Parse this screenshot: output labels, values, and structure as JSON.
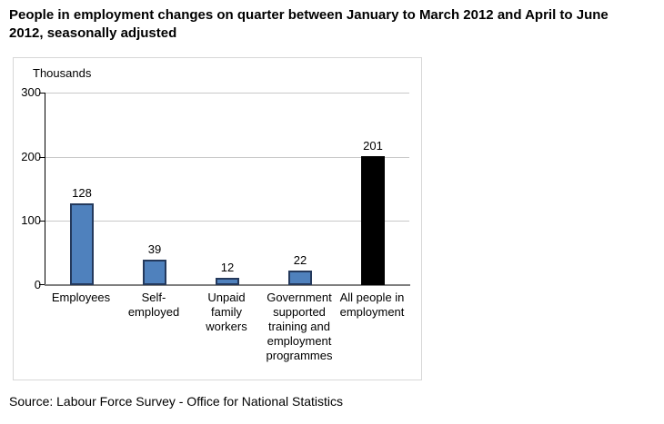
{
  "title": {
    "lines": [
      "People in employment changes on quarter between January to March 2012 and April to June",
      "2012, seasonally adjusted"
    ]
  },
  "source": "Source: Labour Force Survey - Office for National Statistics",
  "chart_data": {
    "type": "bar",
    "title": "People in employment changes on quarter between January to March 2012 and April to June 2012, seasonally adjusted",
    "unit_label": "Thousands",
    "categories": [
      "Employees",
      "Self-employed",
      "Unpaid family workers",
      "Government supported training and employment programmes",
      "All people in employment"
    ],
    "category_label_lines": [
      [
        "Employees"
      ],
      [
        "Self-",
        "employed"
      ],
      [
        "Unpaid",
        "family",
        "workers"
      ],
      [
        "Government",
        "supported",
        "training and",
        "employment",
        "programmes"
      ],
      [
        "All people in",
        "employment"
      ]
    ],
    "values": [
      128,
      39,
      12,
      22,
      201
    ],
    "data_labels": [
      "128",
      "39",
      "12",
      "22",
      "201"
    ],
    "bar_colors": [
      "#4f81bd",
      "#4f81bd",
      "#4f81bd",
      "#4f81bd",
      "#000000"
    ],
    "bar_border_colors": [
      "#24395c",
      "#24395c",
      "#24395c",
      "#24395c",
      "#000000"
    ],
    "xlabel": "",
    "ylabel": "Thousands",
    "ylim": [
      0,
      300
    ],
    "yticks": [
      0,
      100,
      200,
      300
    ],
    "grid": true,
    "legend": false,
    "colors": {
      "gridline": "#c9c9c9",
      "axis_line": "#000000",
      "baseline": "#7f7f7f",
      "frame_border": "#d7d7d7",
      "text": "#000000"
    }
  }
}
